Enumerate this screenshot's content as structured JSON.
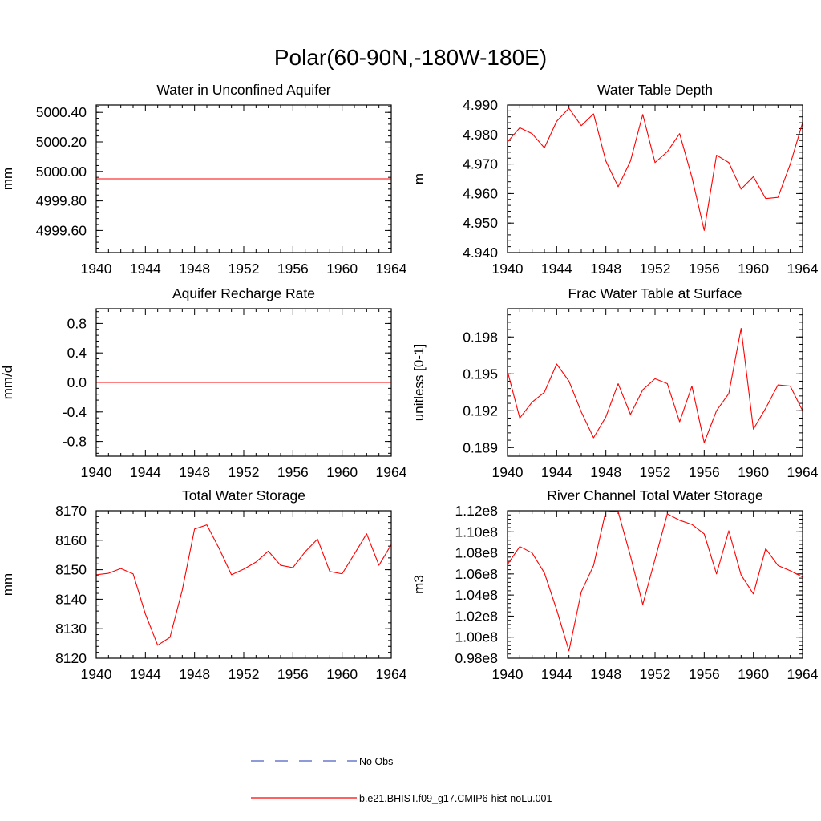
{
  "suptitle": "Polar(60-90N,-180W-180E)",
  "colors": {
    "series": "#ff0000",
    "obs": "#4a5fc1"
  },
  "legend": [
    {
      "label": "No Obs",
      "style": "dashed",
      "color": "#4a5fc1"
    },
    {
      "label": "b.e21.BHIST.f09_g17.CMIP6-hist-noLu.001",
      "style": "solid",
      "color": "#ff0000"
    }
  ],
  "chart_data": [
    {
      "type": "line",
      "title": "Water in Unconfined Aquifer",
      "ylabel": "mm",
      "xlim": [
        1940,
        1964
      ],
      "ylim": [
        4999.45,
        5000.45
      ],
      "xticks": [
        1940,
        1944,
        1948,
        1952,
        1956,
        1960,
        1964
      ],
      "xticklabels": [
        "1940",
        "1944",
        "1948",
        "1952",
        "1956",
        "1960",
        "1964"
      ],
      "yticks": [
        4999.6,
        4999.8,
        5000.0,
        5000.2,
        5000.4
      ],
      "yticklabels": [
        "4999.60",
        "4999.80",
        "5000.00",
        "5000.20",
        "5000.40"
      ],
      "yminor_step": 0.04,
      "series": [
        {
          "x": [
            1940,
            1941,
            1942,
            1943,
            1944,
            1945,
            1946,
            1947,
            1948,
            1949,
            1950,
            1951,
            1952,
            1953,
            1954,
            1955,
            1956,
            1957,
            1958,
            1959,
            1960,
            1961,
            1962,
            1963,
            1964
          ],
          "values": [
            4999.95,
            4999.95,
            4999.95,
            4999.95,
            4999.95,
            4999.95,
            4999.95,
            4999.95,
            4999.95,
            4999.95,
            4999.95,
            4999.95,
            4999.95,
            4999.95,
            4999.95,
            4999.95,
            4999.95,
            4999.95,
            4999.95,
            4999.95,
            4999.95,
            4999.95,
            4999.95,
            4999.95,
            4999.95
          ]
        }
      ]
    },
    {
      "type": "line",
      "title": "Water Table Depth",
      "ylabel": "m",
      "xlim": [
        1940,
        1964
      ],
      "ylim": [
        4.94,
        4.99
      ],
      "xticks": [
        1940,
        1944,
        1948,
        1952,
        1956,
        1960,
        1964
      ],
      "xticklabels": [
        "1940",
        "1944",
        "1948",
        "1952",
        "1956",
        "1960",
        "1964"
      ],
      "yticks": [
        4.94,
        4.95,
        4.96,
        4.97,
        4.98,
        4.99
      ],
      "yticklabels": [
        "4.940",
        "4.950",
        "4.960",
        "4.970",
        "4.980",
        "4.990"
      ],
      "yminor_step": 0.002,
      "series": [
        {
          "x": [
            1940,
            1941,
            1942,
            1943,
            1944,
            1945,
            1946,
            1947,
            1948,
            1949,
            1950,
            1951,
            1952,
            1953,
            1954,
            1955,
            1956,
            1957,
            1958,
            1959,
            1960,
            1961,
            1962,
            1963,
            1964
          ],
          "values": [
            4.9775,
            4.9823,
            4.9803,
            4.9755,
            4.9845,
            4.9889,
            4.983,
            4.987,
            4.971,
            4.9623,
            4.971,
            4.9868,
            4.9705,
            4.9742,
            4.9803,
            4.9655,
            4.9475,
            4.973,
            4.9705,
            4.9615,
            4.9657,
            4.9583,
            4.9587,
            4.97,
            4.984
          ]
        }
      ]
    },
    {
      "type": "line",
      "title": "Aquifer Recharge Rate",
      "ylabel": "mm/d",
      "xlim": [
        1940,
        1964
      ],
      "ylim": [
        -1.0,
        1.0
      ],
      "xticks": [
        1940,
        1944,
        1948,
        1952,
        1956,
        1960,
        1964
      ],
      "xticklabels": [
        "1940",
        "1944",
        "1948",
        "1952",
        "1956",
        "1960",
        "1964"
      ],
      "yticks": [
        -0.8,
        -0.4,
        0.0,
        0.4,
        0.8
      ],
      "yticklabels": [
        "-0.8",
        "-0.4",
        "0.0",
        "0.4",
        "0.8"
      ],
      "yminor_step": 0.08,
      "series": [
        {
          "x": [
            1940,
            1941,
            1942,
            1943,
            1944,
            1945,
            1946,
            1947,
            1948,
            1949,
            1950,
            1951,
            1952,
            1953,
            1954,
            1955,
            1956,
            1957,
            1958,
            1959,
            1960,
            1961,
            1962,
            1963,
            1964
          ],
          "values": [
            0,
            0,
            0,
            0,
            0,
            0,
            0,
            0,
            0,
            0,
            0,
            0,
            0,
            0,
            0,
            0,
            0,
            0,
            0,
            0,
            0,
            0,
            0,
            0,
            0
          ]
        }
      ]
    },
    {
      "type": "line",
      "title": "Frac Water Table at Surface",
      "ylabel": "unitless [0-1]",
      "xlim": [
        1940,
        1964
      ],
      "ylim": [
        0.1883,
        0.2003
      ],
      "xticks": [
        1940,
        1944,
        1948,
        1952,
        1956,
        1960,
        1964
      ],
      "xticklabels": [
        "1940",
        "1944",
        "1948",
        "1952",
        "1956",
        "1960",
        "1964"
      ],
      "yticks": [
        0.189,
        0.192,
        0.195,
        0.198
      ],
      "yticklabels": [
        "0.189",
        "0.192",
        "0.195",
        "0.198"
      ],
      "yminor_step": 0.0006,
      "series": [
        {
          "x": [
            1940,
            1941,
            1942,
            1943,
            1944,
            1945,
            1946,
            1947,
            1948,
            1949,
            1950,
            1951,
            1952,
            1953,
            1954,
            1955,
            1956,
            1957,
            1958,
            1959,
            1960,
            1961,
            1962,
            1963,
            1964
          ],
          "values": [
            0.1952,
            0.1914,
            0.1927,
            0.1935,
            0.1958,
            0.1944,
            0.1919,
            0.1898,
            0.1915,
            0.1942,
            0.1917,
            0.1937,
            0.1946,
            0.1942,
            0.1911,
            0.194,
            0.1894,
            0.192,
            0.1934,
            0.1987,
            0.1905,
            0.1922,
            0.1941,
            0.194,
            0.192
          ]
        }
      ]
    },
    {
      "type": "line",
      "title": "Total Water Storage",
      "ylabel": "mm",
      "xlim": [
        1940,
        1964
      ],
      "ylim": [
        8120,
        8170
      ],
      "xticks": [
        1940,
        1944,
        1948,
        1952,
        1956,
        1960,
        1964
      ],
      "xticklabels": [
        "1940",
        "1944",
        "1948",
        "1952",
        "1956",
        "1960",
        "1964"
      ],
      "yticks": [
        8120,
        8130,
        8140,
        8150,
        8160,
        8170
      ],
      "yticklabels": [
        "8120",
        "8130",
        "8140",
        "8150",
        "8160",
        "8170"
      ],
      "yminor_step": 2,
      "series": [
        {
          "x": [
            1940,
            1941,
            1942,
            1943,
            1944,
            1945,
            1946,
            1947,
            1948,
            1949,
            1950,
            1951,
            1952,
            1953,
            1954,
            1955,
            1956,
            1957,
            1958,
            1959,
            1960,
            1961,
            1962,
            1963,
            1964
          ],
          "values": [
            8148.3,
            8148.8,
            8150.4,
            8148.6,
            8135.0,
            8124.4,
            8127.1,
            8143.1,
            8163.8,
            8165.2,
            8157.2,
            8148.3,
            8150.2,
            8152.6,
            8156.3,
            8151.5,
            8150.7,
            8156.1,
            8160.4,
            8149.4,
            8148.6,
            8155.3,
            8162.2,
            8151.5,
            8158.5
          ]
        }
      ]
    },
    {
      "type": "line",
      "title": "River Channel Total Water Storage",
      "ylabel": "m3",
      "xlim": [
        1940,
        1964
      ],
      "ylim": [
        98000000.0,
        112000000.0
      ],
      "xticks": [
        1940,
        1944,
        1948,
        1952,
        1956,
        1960,
        1964
      ],
      "xticklabels": [
        "1940",
        "1944",
        "1948",
        "1952",
        "1956",
        "1960",
        "1964"
      ],
      "yticks": [
        98000000.0,
        100000000.0,
        102000000.0,
        104000000.0,
        106000000.0,
        108000000.0,
        110000000.0,
        112000000.0
      ],
      "yticklabels": [
        "0.98e8",
        "1.00e8",
        "1.02e8",
        "1.04e8",
        "1.06e8",
        "1.08e8",
        "1.10e8",
        "1.12e8"
      ],
      "yminor_step": 400000.0,
      "series": [
        {
          "x": [
            1940,
            1941,
            1942,
            1943,
            1944,
            1945,
            1946,
            1947,
            1948,
            1949,
            1950,
            1951,
            1952,
            1953,
            1954,
            1955,
            1956,
            1957,
            1958,
            1959,
            1960,
            1961,
            1962,
            1963,
            1964
          ],
          "values": [
            106900000.0,
            108600000.0,
            108000000.0,
            106100000.0,
            102600000.0,
            98700000.0,
            104300000.0,
            106800000.0,
            112000000.0,
            111900000.0,
            107700000.0,
            103100000.0,
            107400000.0,
            111700000.0,
            111100000.0,
            110700000.0,
            109800000.0,
            106000000.0,
            110100000.0,
            105900000.0,
            104100000.0,
            108400000.0,
            106800000.0,
            106300000.0,
            105700000.0
          ]
        }
      ]
    }
  ]
}
